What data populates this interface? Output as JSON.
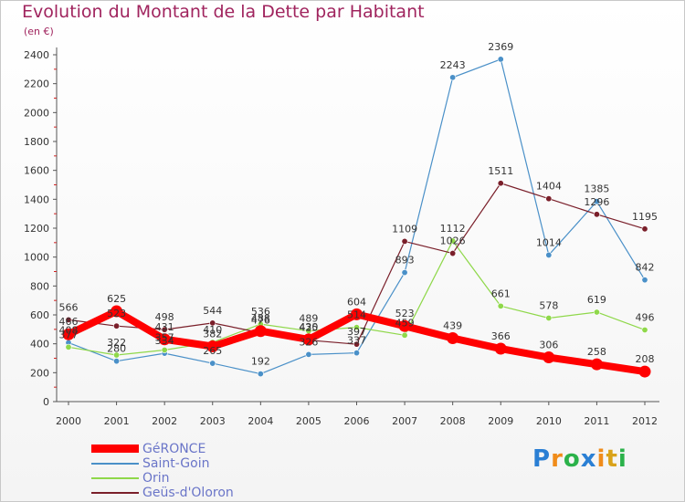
{
  "header": {
    "title": "Evolution du Montant de la Dette par Habitant",
    "subtitle": "(en €)"
  },
  "logo": {
    "letters": [
      "P",
      "r",
      "o",
      "x",
      "i",
      "t",
      "i"
    ],
    "colors": [
      "#2a7fd4",
      "#f08c1a",
      "#2bb24a",
      "#2a7fd4",
      "#f08c1a",
      "#d9a21a",
      "#2bb24a"
    ]
  },
  "chart_data": {
    "type": "line",
    "title": "Evolution du Montant de la Dette par Habitant",
    "subtitle": "(en €)",
    "xlabel": "",
    "ylabel": "",
    "ylim": [
      0,
      2400
    ],
    "y_ticks": [
      0,
      200,
      400,
      600,
      800,
      1000,
      1200,
      1400,
      1600,
      1800,
      2000,
      2200,
      2400
    ],
    "grid": false,
    "legend_position": "bottom-left",
    "x": [
      "2000",
      "2001",
      "2002",
      "2003",
      "2004",
      "2005",
      "2006",
      "2007",
      "2008",
      "2009",
      "2010",
      "2011",
      "2012"
    ],
    "series": [
      {
        "name": "GéRONCE",
        "color": "#ff0000",
        "values": [
          466,
          625,
          431,
          382,
          488,
          430,
          604,
          523,
          439,
          366,
          306,
          258,
          208
        ],
        "labels": [
          "466",
          "625",
          "431",
          "382",
          "488",
          "430",
          "604",
          "523",
          "439",
          "366",
          "306",
          "258",
          "208"
        ]
      },
      {
        "name": "Saint-Goin",
        "color": "#4a90c8",
        "values": [
          408,
          280,
          334,
          265,
          192,
          326,
          337,
          893,
          2243,
          2369,
          1014,
          1385,
          842
        ],
        "labels": [
          "408",
          "280",
          "334",
          "265",
          "192",
          "326",
          "337",
          "893",
          "2243",
          "2369",
          "1014",
          "1385",
          "842"
        ]
      },
      {
        "name": "Orin",
        "color": "#8fd84a",
        "values": [
          377,
          322,
          357,
          410,
          536,
          489,
          514,
          459,
          1112,
          661,
          578,
          619,
          496
        ],
        "labels": [
          "377",
          "322",
          "357",
          "410",
          "536",
          "489",
          "514",
          "459",
          "1112",
          "661",
          "578",
          "619",
          "496"
        ]
      },
      {
        "name": "Geüs-d'Oloron",
        "color": "#7a1f2a",
        "values": [
          566,
          523,
          498,
          544,
          476,
          425,
          397,
          1109,
          1026,
          1511,
          1404,
          1296,
          1195
        ],
        "labels": [
          "566",
          "523",
          "498",
          "544",
          "476",
          "425",
          "397",
          "1109",
          "1026",
          "1511",
          "1404",
          "1296",
          "1195"
        ]
      }
    ]
  }
}
